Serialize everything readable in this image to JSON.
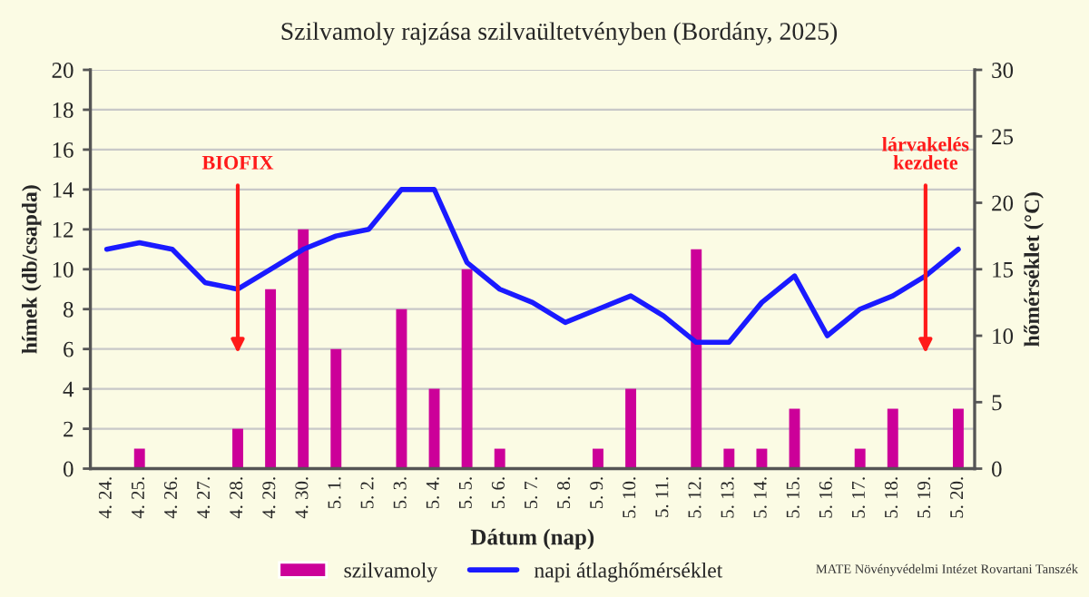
{
  "chart_data": {
    "type": "bar",
    "title": "Szilvamoly rajzása szilvaültetvényben (Bordány, 2025)",
    "xlabel": "Dátum (nap)",
    "ylabel": "hímek (db/csapda)",
    "y2label": "hőmérséklet (°C)",
    "categories": [
      "4. 24.",
      "4. 25.",
      "4. 26.",
      "4. 27.",
      "4. 28.",
      "4. 29.",
      "4. 30.",
      "5. 1.",
      "5. 2.",
      "5. 3.",
      "5. 4.",
      "5. 5.",
      "5. 6.",
      "5. 7.",
      "5. 8.",
      "5. 9.",
      "5. 10.",
      "5. 11.",
      "5. 12.",
      "5. 13.",
      "5. 14.",
      "5. 15.",
      "5. 16.",
      "5. 17.",
      "5. 18.",
      "5. 19.",
      "5. 20."
    ],
    "series": [
      {
        "name": "szilvamoly",
        "color": "#cc0099",
        "values": [
          0,
          1,
          0,
          0,
          2,
          9,
          12,
          6,
          0,
          8,
          4,
          10,
          1,
          0,
          0,
          1,
          4,
          0,
          11,
          1,
          1,
          3,
          0,
          1,
          3,
          0,
          3
        ]
      },
      {
        "name": "napi átlaghőmérséklet",
        "type": "line",
        "axis": "y2",
        "color": "#1a1aff",
        "values": [
          16.5,
          17,
          16.5,
          14,
          13.5,
          15,
          16.5,
          17.5,
          18,
          21,
          21,
          15.5,
          13.5,
          12.5,
          11,
          12,
          13,
          11.5,
          9.5,
          9.5,
          12.5,
          14.5,
          10,
          12,
          13,
          14.5,
          16.5
        ]
      }
    ],
    "ylim": [
      0,
      20
    ],
    "yticks": [
      0,
      2,
      4,
      6,
      8,
      10,
      12,
      14,
      16,
      18,
      20
    ],
    "y2lim": [
      0,
      30
    ],
    "y2ticks": [
      0,
      5,
      10,
      15,
      20,
      25,
      30
    ],
    "grid": "y",
    "legend": "bottom",
    "ref_lines": [
      {
        "axis": "x",
        "value": "4. 28.",
        "label": "BIOFIX",
        "color": "#ff1a1a"
      },
      {
        "axis": "x",
        "value": "5. 19.",
        "label": "lárvakelés\nkezdete",
        "color": "#ff1a1a"
      }
    ],
    "annotations": [
      "MATE Növényvédelmi Intézet Rovartani Tanszék"
    ]
  }
}
